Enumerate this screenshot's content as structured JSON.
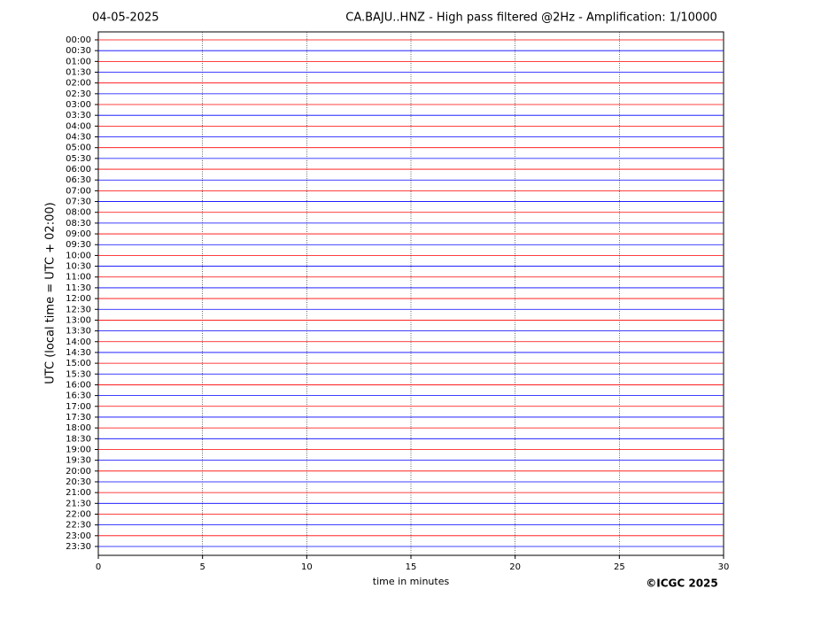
{
  "chart_data": {
    "type": "helicorder",
    "date": "04-05-2025",
    "title": "CA.BAJU..HNZ - High pass filtered @2Hz - Amplification: 1/10000",
    "ylabel": "UTC (local time = UTC + 02:00)",
    "xlabel": "time in minutes",
    "copyright": "©ICGC 2025",
    "categories": [
      "00:00",
      "00:30",
      "01:00",
      "01:30",
      "02:00",
      "02:30",
      "03:00",
      "03:30",
      "04:00",
      "04:30",
      "05:00",
      "05:30",
      "06:00",
      "06:30",
      "07:00",
      "07:30",
      "08:00",
      "08:30",
      "09:00",
      "09:30",
      "10:00",
      "10:30",
      "11:00",
      "11:30",
      "12:00",
      "12:30",
      "13:00",
      "13:30",
      "14:00",
      "14:30",
      "15:00",
      "15:30",
      "16:00",
      "16:30",
      "17:00",
      "17:30",
      "18:00",
      "18:30",
      "19:00",
      "19:30",
      "20:00",
      "20:30",
      "21:00",
      "21:30",
      "22:00",
      "22:30",
      "23:00",
      "23:30"
    ],
    "trace_colors": [
      "#ff0000",
      "#0000ff"
    ],
    "xlim": [
      0,
      30
    ],
    "xticks": [
      0,
      5,
      10,
      15,
      20,
      25,
      30
    ],
    "grid": true
  }
}
